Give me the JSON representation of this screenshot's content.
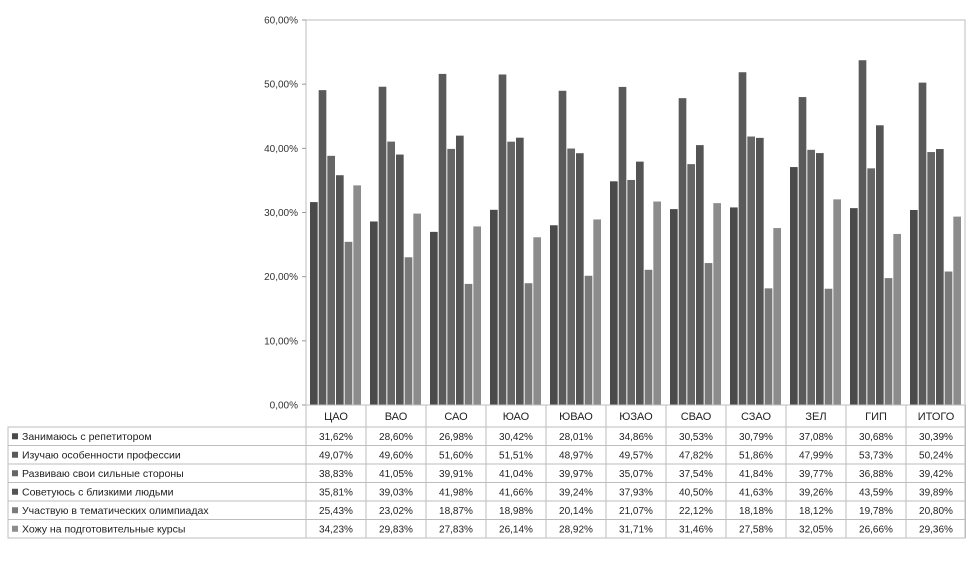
{
  "chart_data": {
    "type": "bar",
    "ylim": [
      0,
      60
    ],
    "y_ticks": [
      "0,00%",
      "10,00%",
      "20,00%",
      "30,00%",
      "40,00%",
      "50,00%",
      "60,00%"
    ],
    "grid": false,
    "legend": "data-table",
    "categories": [
      "ЦАО",
      "ВАО",
      "САО",
      "ЮАО",
      "ЮВАО",
      "ЮЗАО",
      "СВАО",
      "СЗАО",
      "ЗЕЛ",
      "ГИП",
      "ИТОГО"
    ],
    "series": [
      {
        "name": "Занимаюсь с репетитором",
        "values": [
          31.62,
          28.6,
          26.98,
          30.42,
          28.01,
          34.86,
          30.53,
          30.79,
          37.08,
          30.68,
          30.39
        ],
        "labels": [
          "31,62%",
          "28,60%",
          "26,98%",
          "30,42%",
          "28,01%",
          "34,86%",
          "30,53%",
          "30,79%",
          "37,08%",
          "30,68%",
          "30,39%"
        ],
        "color": "#4a4a4a"
      },
      {
        "name": "Изучаю особенности профессии",
        "values": [
          49.07,
          49.6,
          51.6,
          51.51,
          48.97,
          49.57,
          47.82,
          51.86,
          47.99,
          53.73,
          50.24
        ],
        "labels": [
          "49,07%",
          "49,60%",
          "51,60%",
          "51,51%",
          "48,97%",
          "49,57%",
          "47,82%",
          "51,86%",
          "47,99%",
          "53,73%",
          "50,24%"
        ],
        "color": "#5a5a5a"
      },
      {
        "name": "Развиваю свои сильные стороны",
        "values": [
          38.83,
          41.05,
          39.91,
          41.04,
          39.97,
          35.07,
          37.54,
          41.84,
          39.77,
          36.88,
          39.42
        ],
        "labels": [
          "38,83%",
          "41,05%",
          "39,91%",
          "41,04%",
          "39,97%",
          "35,07%",
          "37,54%",
          "41,84%",
          "39,77%",
          "36,88%",
          "39,42%"
        ],
        "color": "#666666"
      },
      {
        "name": "Советуюсь с близкими людьми",
        "values": [
          35.81,
          39.03,
          41.98,
          41.66,
          39.24,
          37.93,
          40.5,
          41.63,
          39.26,
          43.59,
          39.89
        ],
        "labels": [
          "35,81%",
          "39,03%",
          "41,98%",
          "41,66%",
          "39,24%",
          "37,93%",
          "40,50%",
          "41,63%",
          "39,26%",
          "43,59%",
          "39,89%"
        ],
        "color": "#545454"
      },
      {
        "name": "Участвую в тематических олимпиадах",
        "values": [
          25.43,
          23.02,
          18.87,
          18.98,
          20.14,
          21.07,
          22.12,
          18.18,
          18.12,
          19.78,
          20.8
        ],
        "labels": [
          "25,43%",
          "23,02%",
          "18,87%",
          "18,98%",
          "20,14%",
          "21,07%",
          "22,12%",
          "18,18%",
          "18,12%",
          "19,78%",
          "20,80%"
        ],
        "color": "#7a7a7a"
      },
      {
        "name": "Хожу на подготовительные курсы",
        "values": [
          34.23,
          29.83,
          27.83,
          26.14,
          28.92,
          31.71,
          31.46,
          27.58,
          32.05,
          26.66,
          29.36
        ],
        "labels": [
          "34,23%",
          "29,83%",
          "27,83%",
          "26,14%",
          "28,92%",
          "31,71%",
          "31,46%",
          "27,58%",
          "32,05%",
          "26,66%",
          "29,36%"
        ],
        "color": "#8c8c8c"
      }
    ]
  }
}
